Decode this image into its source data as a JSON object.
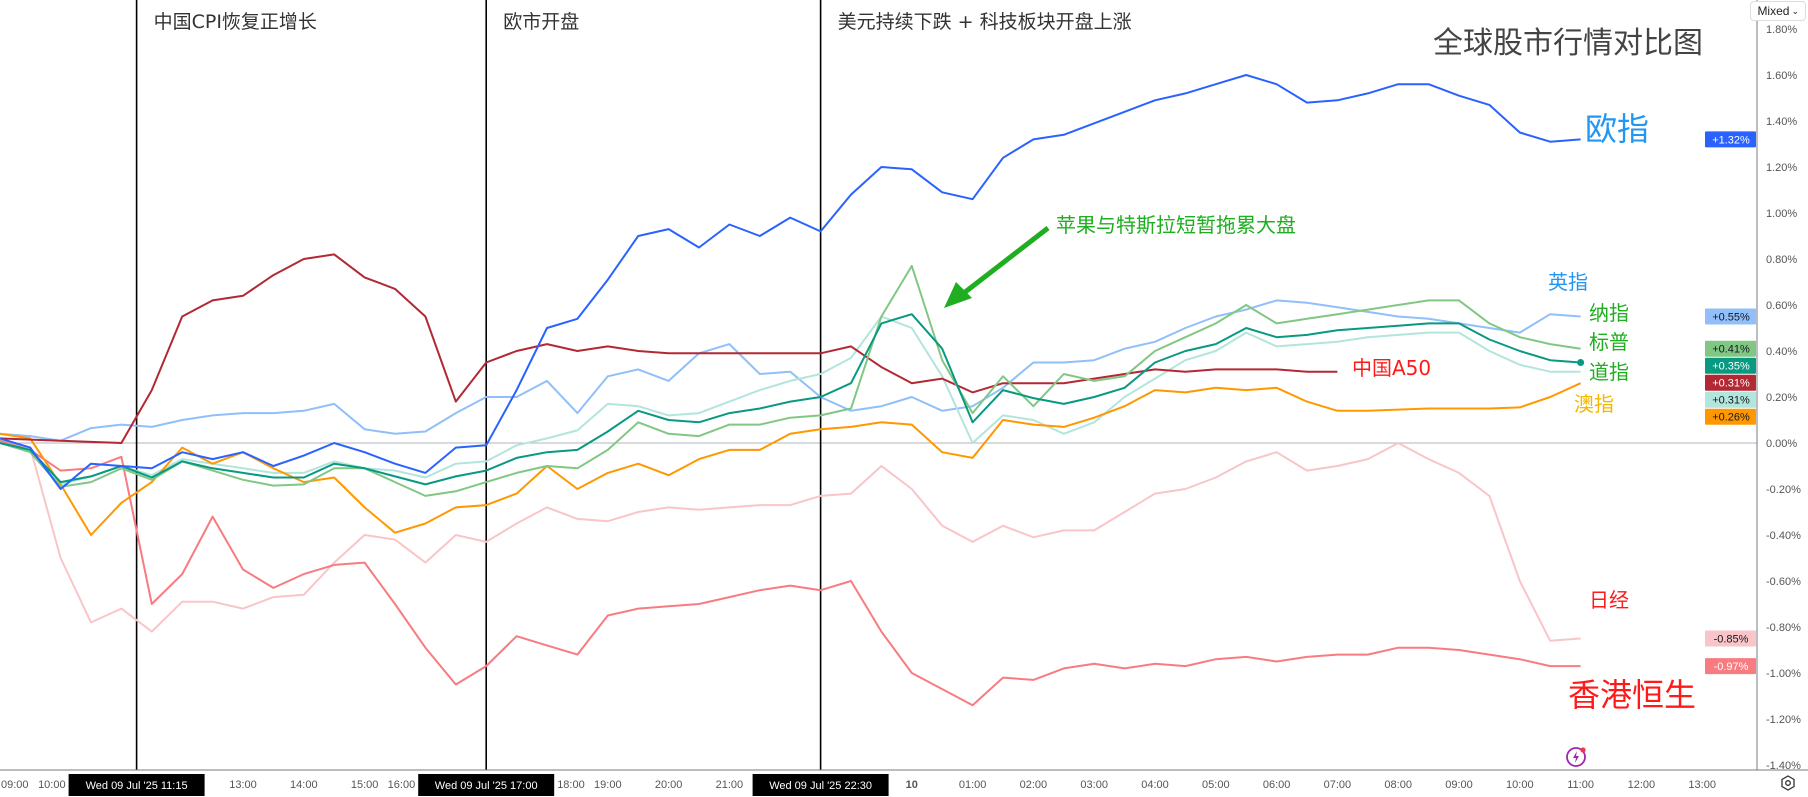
{
  "title": "全球股市行情对比图",
  "scale_button": {
    "label": "Mixed",
    "icon": "chevron-down-icon"
  },
  "settings_icon": "gear-icon",
  "alert_icon": "lightning-icon",
  "colors": {
    "zero_line": "#b2b5be",
    "event_line": "#000000",
    "title": "#444444",
    "axis_text": "#555555"
  },
  "events": [
    {
      "time": "07-09 11:15",
      "text": "中国CPI恢复正增长",
      "crosshair_label": "Wed 09 Jul '25   11:15"
    },
    {
      "time": "07-09 17:00",
      "text": "欧市开盘",
      "crosshair_label": "Wed 09 Jul '25   17:00"
    },
    {
      "time": "07-09 22:30",
      "text": "美元持续下跌 + 科技板块开盘上涨",
      "crosshair_label": "Wed 09 Jul '25   22:30"
    }
  ],
  "callout": {
    "text": "苹果与特斯拉短暂拖累大盘",
    "color": "#1fae1f"
  },
  "chart_data": {
    "type": "line",
    "yscale": "percent",
    "ylim": [
      -1.4,
      1.8
    ],
    "yticks": [
      1.8,
      1.6,
      1.4,
      1.2,
      1.0,
      0.8,
      0.6,
      0.4,
      0.2,
      0.0,
      -0.2,
      -0.4,
      -0.6,
      -0.8,
      -1.0,
      -1.2,
      -1.4
    ],
    "ytick_labels": [
      "1.80%",
      "1.60%",
      "1.40%",
      "1.20%",
      "1.00%",
      "0.80%",
      "0.60%",
      "0.40%",
      "0.20%",
      "0.00%",
      "-0.20%",
      "-0.40%",
      "-0.60%",
      "-0.80%",
      "-1.00%",
      "-1.20%",
      "-1.40%"
    ],
    "xticks": [
      {
        "time": "07-09 09:00",
        "label": "09:00"
      },
      {
        "time": "07-09 10:00",
        "label": "10:00"
      },
      {
        "time": "07-09 13:00",
        "label": "13:00"
      },
      {
        "time": "07-09 14:00",
        "label": "14:00"
      },
      {
        "time": "07-09 15:00",
        "label": "15:00"
      },
      {
        "time": "07-09 16:00",
        "label": "16:00"
      },
      {
        "time": "07-09 18:00",
        "label": "18:00"
      },
      {
        "time": "07-09 19:00",
        "label": "19:00"
      },
      {
        "time": "07-09 20:00",
        "label": "20:00"
      },
      {
        "time": "07-09 21:00",
        "label": "21:00"
      },
      {
        "time": "07-10 00:00",
        "label": "10"
      },
      {
        "time": "07-10 01:00",
        "label": "01:00"
      },
      {
        "time": "07-10 02:00",
        "label": "02:00"
      },
      {
        "time": "07-10 03:00",
        "label": "03:00"
      },
      {
        "time": "07-10 04:00",
        "label": "04:00"
      },
      {
        "time": "07-10 05:00",
        "label": "05:00"
      },
      {
        "time": "07-10 06:00",
        "label": "06:00"
      },
      {
        "time": "07-10 07:00",
        "label": "07:00"
      },
      {
        "time": "07-10 08:00",
        "label": "08:00"
      },
      {
        "time": "07-10 09:00",
        "label": "09:00"
      },
      {
        "time": "07-10 10:00",
        "label": "10:00"
      },
      {
        "time": "07-10 11:00",
        "label": "11:00"
      },
      {
        "time": "07-10 12:00",
        "label": "12:00"
      },
      {
        "time": "07-10 13:00",
        "label": "13:00"
      }
    ],
    "x": [
      "07-09 09:00",
      "07-09 09:30",
      "07-09 10:00",
      "07-09 10:30",
      "07-09 11:00",
      "07-09 11:30",
      "07-09 12:00",
      "07-09 12:30",
      "07-09 13:00",
      "07-09 13:30",
      "07-09 14:00",
      "07-09 14:30",
      "07-09 15:00",
      "07-09 15:30",
      "07-09 16:00",
      "07-09 16:30",
      "07-09 17:00",
      "07-09 17:30",
      "07-09 18:00",
      "07-09 18:30",
      "07-09 19:00",
      "07-09 19:30",
      "07-09 20:00",
      "07-09 20:30",
      "07-09 21:00",
      "07-09 21:30",
      "07-09 22:00",
      "07-09 22:30",
      "07-09 23:00",
      "07-09 23:30",
      "07-10 00:00",
      "07-10 00:30",
      "07-10 01:00",
      "07-10 01:30",
      "07-10 02:00",
      "07-10 02:30",
      "07-10 03:00",
      "07-10 03:30",
      "07-10 04:00",
      "07-10 04:30",
      "07-10 05:00",
      "07-10 05:30",
      "07-10 06:00",
      "07-10 06:30",
      "07-10 07:00",
      "07-10 07:30",
      "07-10 08:00",
      "07-10 08:30",
      "07-10 09:00",
      "07-10 09:30",
      "07-10 10:00",
      "07-10 10:30",
      "07-10 11:00"
    ],
    "series": [
      {
        "name": "欧指",
        "color": "#2962ff",
        "label_color": "#2196f3",
        "last": "+1.32%",
        "badge_text": "#ffffff",
        "values": [
          0.02,
          -0.02,
          -0.2,
          -0.09,
          -0.1,
          -0.11,
          -0.04,
          -0.07,
          -0.04,
          -0.1,
          -0.055,
          0.0,
          -0.04,
          -0.09,
          -0.13,
          -0.02,
          -0.01,
          0.23,
          0.5,
          0.54,
          0.71,
          0.9,
          0.93,
          0.85,
          0.95,
          0.9,
          0.98,
          0.92,
          1.08,
          1.2,
          1.19,
          1.09,
          1.06,
          1.24,
          1.32,
          1.34,
          1.39,
          1.44,
          1.49,
          1.52,
          1.56,
          1.6,
          1.56,
          1.48,
          1.49,
          1.52,
          1.56,
          1.56,
          1.51,
          1.47,
          1.35,
          1.31,
          1.32
        ]
      },
      {
        "name": "英指",
        "color": "#90bff9",
        "label_color": "#2196f3",
        "last": "+0.55%",
        "badge_text": "#131722",
        "values": [
          0.04,
          0.03,
          0.01,
          0.065,
          0.08,
          0.07,
          0.1,
          0.12,
          0.13,
          0.13,
          0.14,
          0.17,
          0.06,
          0.04,
          0.05,
          0.13,
          0.2,
          0.2,
          0.27,
          0.13,
          0.29,
          0.32,
          0.27,
          0.39,
          0.43,
          0.3,
          0.31,
          0.2,
          0.14,
          0.16,
          0.2,
          0.14,
          0.16,
          0.24,
          0.35,
          0.35,
          0.36,
          0.41,
          0.44,
          0.5,
          0.55,
          0.58,
          0.62,
          0.61,
          0.59,
          0.57,
          0.55,
          0.54,
          0.52,
          0.5,
          0.48,
          0.56,
          0.55
        ]
      },
      {
        "name": "纳指",
        "color": "#81c784",
        "label_color": "#1fae1f",
        "last": "+0.41%",
        "badge_text": "#131722",
        "values": [
          0.0,
          -0.04,
          -0.19,
          -0.17,
          -0.11,
          -0.16,
          -0.08,
          -0.12,
          -0.16,
          -0.185,
          -0.18,
          -0.11,
          -0.11,
          -0.17,
          -0.23,
          -0.21,
          -0.17,
          -0.13,
          -0.1,
          -0.11,
          -0.03,
          0.09,
          0.04,
          0.03,
          0.08,
          0.08,
          0.11,
          0.12,
          0.15,
          0.55,
          0.77,
          0.36,
          0.13,
          0.29,
          0.16,
          0.3,
          0.27,
          0.29,
          0.4,
          0.46,
          0.52,
          0.6,
          0.52,
          0.54,
          0.56,
          0.58,
          0.6,
          0.62,
          0.62,
          0.52,
          0.46,
          0.43,
          0.41
        ]
      },
      {
        "name": "标普",
        "color": "#089981",
        "label_color": "#1fae1f",
        "last": "+0.35%",
        "badge_text": "#ffffff",
        "end_dot": true,
        "values": [
          0.0,
          -0.03,
          -0.17,
          -0.145,
          -0.1,
          -0.15,
          -0.08,
          -0.11,
          -0.13,
          -0.15,
          -0.15,
          -0.09,
          -0.11,
          -0.145,
          -0.18,
          -0.145,
          -0.12,
          -0.065,
          -0.04,
          -0.03,
          0.05,
          0.14,
          0.1,
          0.09,
          0.13,
          0.15,
          0.18,
          0.2,
          0.26,
          0.52,
          0.56,
          0.41,
          0.09,
          0.23,
          0.195,
          0.17,
          0.2,
          0.24,
          0.35,
          0.4,
          0.43,
          0.5,
          0.46,
          0.47,
          0.49,
          0.5,
          0.51,
          0.52,
          0.52,
          0.45,
          0.4,
          0.36,
          0.35
        ]
      },
      {
        "name": "中国A50",
        "color": "#b22833",
        "label_color": "#ff1a1a",
        "last": "+0.31%",
        "badge_text": "#ffffff",
        "values": [
          0.02,
          0.015,
          0.01,
          0.005,
          0.0,
          0.23,
          0.55,
          0.62,
          0.64,
          0.73,
          0.8,
          0.82,
          0.72,
          0.67,
          0.55,
          0.18,
          0.35,
          0.4,
          0.43,
          0.4,
          0.42,
          0.4,
          0.39,
          0.39,
          0.39,
          0.39,
          0.39,
          0.39,
          0.42,
          0.33,
          0.26,
          0.28,
          0.22,
          0.26,
          0.26,
          0.26,
          0.28,
          0.3,
          0.32,
          0.31,
          0.32,
          0.32,
          0.32,
          0.31,
          0.31,
          null,
          null,
          null,
          null,
          null,
          null,
          null,
          null
        ]
      },
      {
        "name": "道指",
        "color": "#b2e5dc",
        "label_color": "#1fae1f",
        "last": "+0.31%",
        "badge_text": "#131722",
        "values": [
          0.0,
          -0.03,
          -0.18,
          -0.145,
          -0.1,
          -0.14,
          -0.07,
          -0.09,
          -0.11,
          -0.13,
          -0.13,
          -0.08,
          -0.11,
          -0.12,
          -0.15,
          -0.09,
          -0.08,
          -0.01,
          0.02,
          0.055,
          0.17,
          0.16,
          0.12,
          0.13,
          0.18,
          0.23,
          0.27,
          0.3,
          0.37,
          0.55,
          0.5,
          0.29,
          0.0,
          0.12,
          0.1,
          0.04,
          0.09,
          0.2,
          0.28,
          0.36,
          0.4,
          0.48,
          0.42,
          0.43,
          0.44,
          0.46,
          0.47,
          0.48,
          0.48,
          0.4,
          0.34,
          0.31,
          0.31
        ]
      },
      {
        "name": "澳指",
        "color": "#ff9800",
        "label_color": "#f5b800",
        "last": "+0.26%",
        "badge_text": "#131722",
        "values": [
          0.04,
          0.02,
          -0.18,
          -0.4,
          -0.26,
          -0.17,
          -0.02,
          -0.09,
          -0.04,
          -0.11,
          -0.17,
          -0.15,
          -0.28,
          -0.39,
          -0.35,
          -0.28,
          -0.27,
          -0.22,
          -0.1,
          -0.2,
          -0.13,
          -0.09,
          -0.14,
          -0.07,
          -0.03,
          -0.03,
          0.04,
          0.06,
          0.07,
          0.09,
          0.08,
          -0.04,
          -0.065,
          0.1,
          0.08,
          0.07,
          0.11,
          0.16,
          0.23,
          0.22,
          0.24,
          0.23,
          0.24,
          0.18,
          0.14,
          0.14,
          0.145,
          0.15,
          0.15,
          0.15,
          0.155,
          0.2,
          0.26
        ]
      },
      {
        "name": "日经",
        "color": "#f9c5c8",
        "label_color": "#ff1a1a",
        "last": "-0.85%",
        "badge_text": "#131722",
        "values": [
          0.01,
          -0.02,
          -0.5,
          -0.78,
          -0.72,
          -0.82,
          -0.69,
          -0.69,
          -0.72,
          -0.67,
          -0.66,
          -0.52,
          -0.4,
          -0.42,
          -0.52,
          -0.4,
          -0.43,
          -0.35,
          -0.28,
          -0.33,
          -0.34,
          -0.3,
          -0.28,
          -0.29,
          -0.28,
          -0.27,
          -0.27,
          -0.23,
          -0.22,
          -0.1,
          -0.2,
          -0.36,
          -0.43,
          -0.36,
          -0.41,
          -0.38,
          -0.38,
          -0.3,
          -0.22,
          -0.2,
          -0.15,
          -0.08,
          -0.04,
          -0.12,
          -0.1,
          -0.07,
          0.0,
          -0.07,
          -0.13,
          -0.23,
          -0.6,
          -0.86,
          -0.85
        ]
      },
      {
        "name": "香港恒生",
        "color": "#f77c80",
        "label_color": "#ff1a1a",
        "last": "-0.97%",
        "badge_text": "#ffffff",
        "values": [
          0.01,
          -0.03,
          -0.12,
          -0.11,
          -0.06,
          -0.7,
          -0.57,
          -0.32,
          -0.55,
          -0.63,
          -0.57,
          -0.53,
          -0.52,
          -0.7,
          -0.89,
          -1.05,
          -0.97,
          -0.84,
          -0.88,
          -0.92,
          -0.75,
          -0.72,
          -0.71,
          -0.7,
          -0.67,
          -0.64,
          -0.62,
          -0.64,
          -0.6,
          -0.82,
          -1.0,
          -1.07,
          -1.14,
          -1.02,
          -1.03,
          -0.98,
          -0.96,
          -0.98,
          -0.96,
          -0.97,
          -0.94,
          -0.93,
          -0.95,
          -0.93,
          -0.92,
          -0.92,
          -0.89,
          -0.89,
          -0.9,
          -0.92,
          -0.94,
          -0.97,
          -0.97
        ]
      }
    ]
  }
}
